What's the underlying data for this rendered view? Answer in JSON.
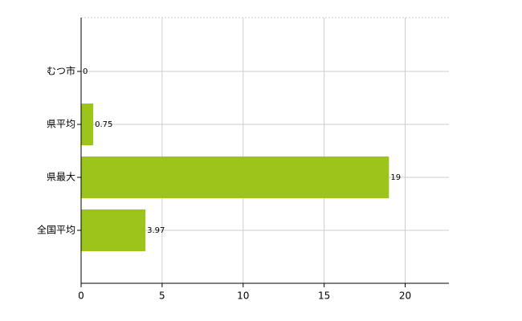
{
  "chart_data": {
    "type": "bar",
    "orientation": "horizontal",
    "categories": [
      "むつ市",
      "県平均",
      "県最大",
      "全国平均"
    ],
    "values": [
      0,
      0.75,
      19,
      3.97
    ],
    "color": "#9dc41a",
    "xlim": [
      0,
      22.7
    ],
    "xticks": [
      0,
      5,
      10,
      15,
      20
    ],
    "grid": true
  }
}
